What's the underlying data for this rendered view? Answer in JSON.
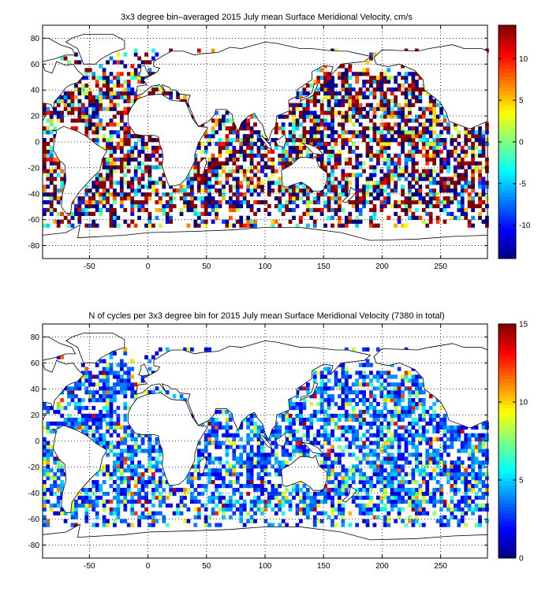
{
  "colors": {
    "frame": "#000000",
    "land_outline": "#000000",
    "grid": "#000000",
    "background": "#ffffff"
  },
  "colormap": "jet",
  "chart_data": [
    {
      "type": "heatmap",
      "title": "3x3 degree bin–averaged 2015 July mean Surface Meridional Velocity, cm/s",
      "xlabel": "",
      "ylabel": "",
      "xlim": [
        -90,
        290
      ],
      "ylim": [
        -90,
        90
      ],
      "x_ticks": [
        -50,
        0,
        50,
        100,
        150,
        200,
        250
      ],
      "y_ticks": [
        -80,
        -60,
        -40,
        -20,
        0,
        20,
        40,
        60,
        80
      ],
      "grid": true,
      "bin_size_deg": 3,
      "colorbar": {
        "min": -14,
        "max": 14,
        "ticks": [
          -10,
          -5,
          0,
          5,
          10
        ]
      },
      "field_seed": 17
    },
    {
      "type": "heatmap",
      "title": "N of cycles per 3x3 degree bin for 2015 July mean Surface Meridional Velocity (7380 in total)",
      "xlabel": "",
      "ylabel": "",
      "xlim": [
        -90,
        290
      ],
      "ylim": [
        -90,
        90
      ],
      "x_ticks": [
        -50,
        0,
        50,
        100,
        150,
        200,
        250
      ],
      "y_ticks": [
        -80,
        -60,
        -40,
        -20,
        0,
        20,
        40,
        60,
        80
      ],
      "grid": true,
      "bin_size_deg": 3,
      "total_cycles": 7380,
      "colorbar": {
        "min": 0,
        "max": 15,
        "ticks": [
          0,
          5,
          10,
          15
        ]
      },
      "field_seed": 71
    }
  ]
}
